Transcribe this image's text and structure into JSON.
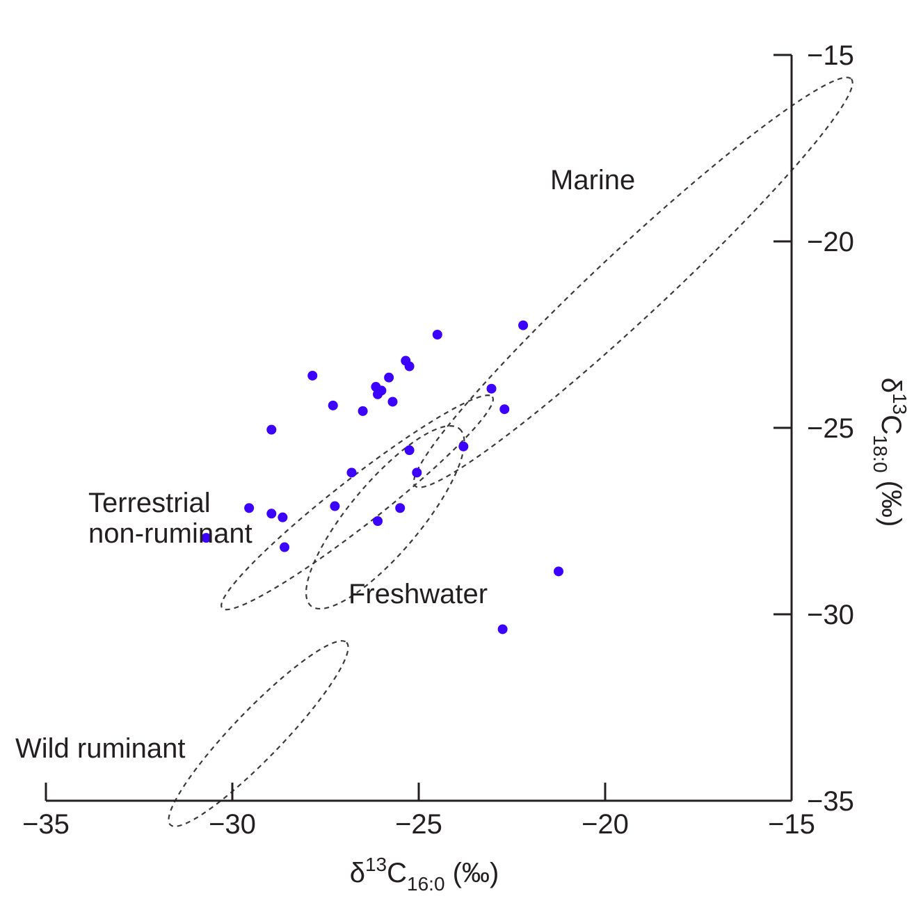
{
  "chart_data": {
    "type": "scatter",
    "xlabel": {
      "prefix": "δ",
      "sup": "13",
      "main": "C",
      "sub": "16:0",
      "suffix": " (‰)"
    },
    "ylabel": {
      "prefix": "δ",
      "sup": "13",
      "main": "C",
      "sub": "18:0",
      "suffix": " (‰)"
    },
    "xlim": [
      -35,
      -15
    ],
    "ylim": [
      -35,
      -15
    ],
    "xticks": [
      -35,
      -30,
      -25,
      -20,
      -15
    ],
    "yticks": [
      -35,
      -30,
      -25,
      -20,
      -15
    ],
    "xtick_labels": [
      "−35",
      "−30",
      "−25",
      "−20",
      "−15"
    ],
    "ytick_labels": [
      "−35",
      "−30",
      "−25",
      "−20",
      "−15"
    ],
    "grid": false,
    "point_color": "#3b00ff",
    "regions": [
      {
        "label": "Marine",
        "center": [
          -19.25,
          -21.1
        ],
        "semi_axes": [
          8.0,
          0.92
        ],
        "angle_deg": 43
      },
      {
        "label": "Terrestrial\nnon-ruminant",
        "center": [
          -26.65,
          -27.0
        ],
        "semi_axes": [
          4.6,
          0.62
        ],
        "angle_deg": 38
      },
      {
        "label": "Freshwater",
        "center": [
          -25.9,
          -27.4
        ],
        "semi_axes": [
          3.1,
          0.95
        ],
        "angle_deg": 50
      },
      {
        "label": "Wild ruminant",
        "center": [
          -29.3,
          -33.2
        ],
        "semi_axes": [
          3.4,
          0.65
        ],
        "angle_deg": 46
      }
    ],
    "points": [
      {
        "x": -24.5,
        "y": -22.5
      },
      {
        "x": -22.2,
        "y": -22.25
      },
      {
        "x": -25.35,
        "y": -23.2
      },
      {
        "x": -25.25,
        "y": -23.35
      },
      {
        "x": -27.85,
        "y": -23.6
      },
      {
        "x": -25.8,
        "y": -23.65
      },
      {
        "x": -26.15,
        "y": -23.9
      },
      {
        "x": -26.0,
        "y": -24.0
      },
      {
        "x": -26.1,
        "y": -24.1
      },
      {
        "x": -23.05,
        "y": -23.95
      },
      {
        "x": -25.7,
        "y": -24.3
      },
      {
        "x": -27.3,
        "y": -24.4
      },
      {
        "x": -26.5,
        "y": -24.55
      },
      {
        "x": -22.7,
        "y": -24.5
      },
      {
        "x": -28.95,
        "y": -25.05
      },
      {
        "x": -23.8,
        "y": -25.5
      },
      {
        "x": -25.25,
        "y": -25.6
      },
      {
        "x": -26.8,
        "y": -26.2
      },
      {
        "x": -25.05,
        "y": -26.2
      },
      {
        "x": -27.25,
        "y": -27.1
      },
      {
        "x": -29.55,
        "y": -27.15
      },
      {
        "x": -25.5,
        "y": -27.15
      },
      {
        "x": -28.95,
        "y": -27.3
      },
      {
        "x": -28.65,
        "y": -27.4
      },
      {
        "x": -26.1,
        "y": -27.5
      },
      {
        "x": -30.7,
        "y": -27.95
      },
      {
        "x": -28.6,
        "y": -28.2
      },
      {
        "x": -21.25,
        "y": -28.85
      },
      {
        "x": -22.75,
        "y": -30.4
      }
    ]
  }
}
